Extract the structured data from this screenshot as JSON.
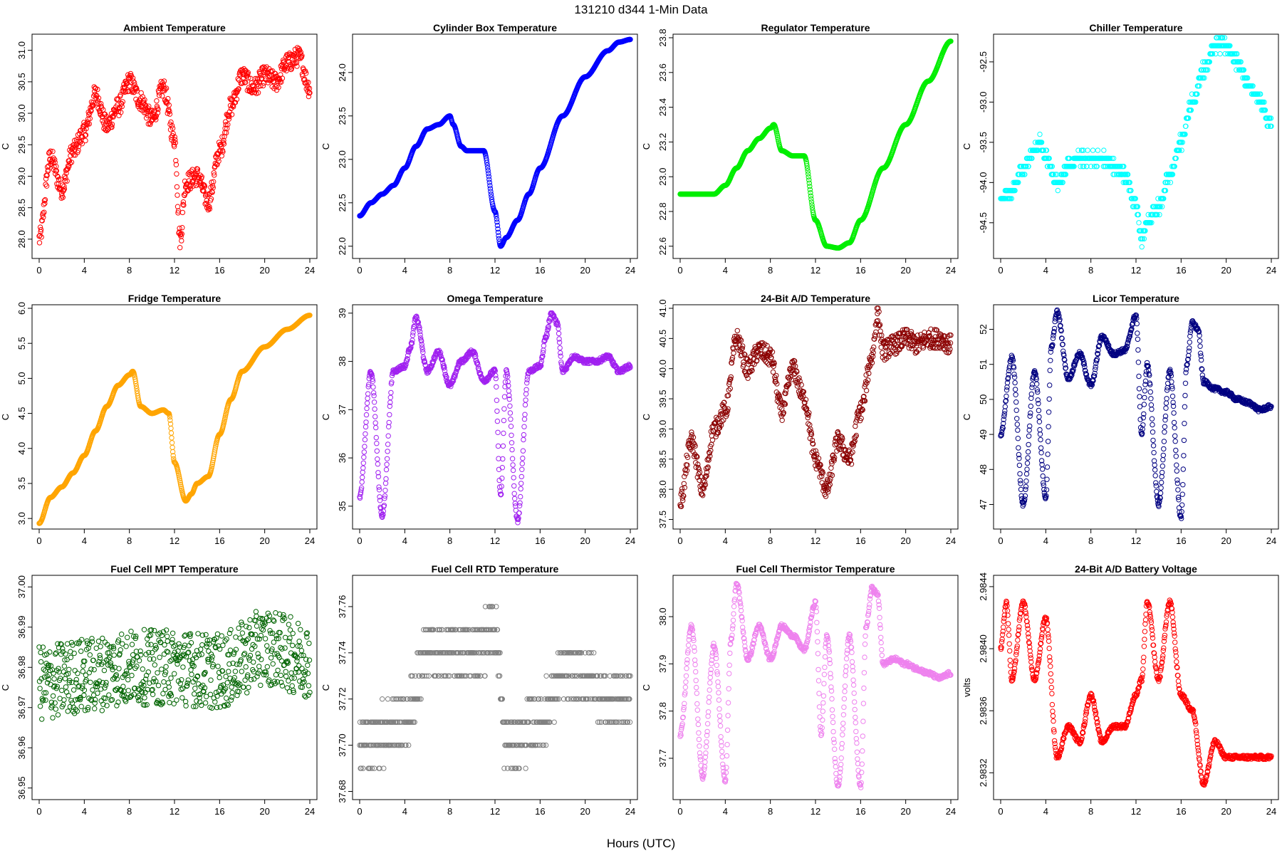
{
  "page": {
    "title": "131210    d344    1-Min Data",
    "x_label": "Hours (UTC)"
  },
  "chart_data": [
    {
      "type": "scatter",
      "title": "Ambient Temperature",
      "ylabel": "C",
      "xlabel": "",
      "xlim": [
        0,
        24
      ],
      "ylim": [
        27.75,
        31.2
      ],
      "xticks": [
        0,
        4,
        8,
        12,
        16,
        20,
        24
      ],
      "yticks": [
        "28.0",
        "28.5",
        "29.0",
        "29.5",
        "30.0",
        "30.5",
        "31.0"
      ],
      "color": "#ff0000",
      "style": "noisy",
      "series": [
        {
          "name": "Ambient Temperature",
          "x": [
            0,
            1,
            2,
            3,
            4,
            5,
            6,
            7,
            8,
            9,
            10,
            11,
            12,
            12.5,
            13,
            14,
            15,
            16,
            17,
            18,
            19,
            20,
            21,
            22,
            23,
            24
          ],
          "y": [
            28.0,
            29.3,
            28.8,
            29.4,
            29.7,
            30.3,
            29.8,
            30.1,
            30.5,
            30.2,
            29.9,
            30.4,
            29.6,
            28.0,
            28.9,
            29.0,
            28.6,
            29.4,
            30.1,
            30.6,
            30.4,
            30.6,
            30.5,
            30.8,
            30.9,
            30.4
          ]
        }
      ]
    },
    {
      "type": "scatter",
      "title": "Cylinder Box Temperature",
      "ylabel": "C",
      "xlabel": "",
      "xlim": [
        0,
        24
      ],
      "ylim": [
        21.9,
        24.4
      ],
      "xticks": [
        0,
        4,
        8,
        12,
        16,
        20,
        24
      ],
      "yticks": [
        "22.0",
        "22.5",
        "23.0",
        "23.5",
        "24.0"
      ],
      "color": "#0000ff",
      "style": "smooth",
      "series": [
        {
          "name": "Cylinder Box Temperature",
          "x": [
            0,
            1,
            2,
            3,
            4,
            5,
            6,
            7,
            8,
            8.3,
            9,
            9.5,
            10,
            11,
            12,
            12.5,
            13,
            14,
            15,
            16,
            18,
            20,
            22,
            23,
            24
          ],
          "y": [
            22.35,
            22.5,
            22.6,
            22.7,
            22.9,
            23.15,
            23.35,
            23.4,
            23.5,
            23.4,
            23.15,
            23.1,
            23.1,
            23.1,
            22.4,
            22.0,
            22.1,
            22.3,
            22.6,
            22.9,
            23.5,
            23.95,
            24.25,
            24.35,
            24.38
          ]
        }
      ]
    },
    {
      "type": "scatter",
      "title": "Regulator Temperature",
      "ylabel": "C",
      "xlabel": "",
      "xlim": [
        0,
        24
      ],
      "ylim": [
        22.55,
        23.8
      ],
      "xticks": [
        0,
        4,
        8,
        12,
        16,
        20,
        24
      ],
      "yticks": [
        "22.6",
        "22.8",
        "23.0",
        "23.2",
        "23.4",
        "23.6",
        "23.8"
      ],
      "color": "#00ee00",
      "style": "smooth",
      "series": [
        {
          "name": "Regulator Temperature",
          "x": [
            0,
            1,
            2,
            3,
            4,
            5,
            6,
            7,
            8,
            8.3,
            9,
            10,
            11,
            12,
            13,
            14,
            15,
            16,
            18,
            20,
            22,
            24
          ],
          "y": [
            22.9,
            22.9,
            22.9,
            22.9,
            22.95,
            23.05,
            23.15,
            23.22,
            23.28,
            23.3,
            23.15,
            23.12,
            23.12,
            22.75,
            22.6,
            22.59,
            22.62,
            22.75,
            23.05,
            23.3,
            23.55,
            23.78
          ]
        }
      ]
    },
    {
      "type": "scatter",
      "title": "Chiller Temperature",
      "ylabel": "C",
      "xlabel": "",
      "xlim": [
        0,
        24
      ],
      "ylim": [
        -94.9,
        -92.2
      ],
      "xticks": [
        0,
        4,
        8,
        12,
        16,
        20,
        24
      ],
      "yticks": [
        "-94.5",
        "-94.0",
        "-93.5",
        "-93.0",
        "-92.5"
      ],
      "color": "#00ffff",
      "style": "step",
      "series": [
        {
          "name": "Chiller Temperature",
          "x": [
            0,
            1,
            2,
            3,
            3.5,
            4,
            5,
            6,
            7,
            8,
            9,
            10,
            11,
            12,
            12.5,
            13,
            14,
            15,
            16,
            17,
            18,
            19,
            20,
            21,
            22,
            23,
            24
          ],
          "y": [
            -94.2,
            -94.1,
            -93.8,
            -93.6,
            -93.5,
            -93.7,
            -94.0,
            -93.8,
            -93.7,
            -93.7,
            -93.7,
            -93.8,
            -93.9,
            -94.3,
            -94.7,
            -94.5,
            -94.3,
            -93.9,
            -93.5,
            -93.0,
            -92.6,
            -92.3,
            -92.3,
            -92.5,
            -92.8,
            -93.0,
            -93.3
          ]
        }
      ]
    },
    {
      "type": "scatter",
      "title": "Fridge Temperature",
      "ylabel": "C",
      "xlabel": "",
      "xlim": [
        0,
        24
      ],
      "ylim": [
        2.9,
        6.0
      ],
      "xticks": [
        0,
        4,
        8,
        12,
        16,
        20,
        24
      ],
      "yticks": [
        "3.0",
        "3.5",
        "4.0",
        "4.5",
        "5.0",
        "5.5",
        "6.0"
      ],
      "color": "#ffa500",
      "style": "smooth",
      "series": [
        {
          "name": "Fridge Temperature",
          "x": [
            0,
            1,
            2,
            3,
            4,
            5,
            6,
            7,
            8,
            8.3,
            9,
            10,
            11,
            11.5,
            12,
            13,
            13.5,
            14,
            15,
            16,
            17,
            18,
            20,
            22,
            24
          ],
          "y": [
            2.93,
            3.3,
            3.45,
            3.65,
            3.9,
            4.25,
            4.6,
            4.9,
            5.05,
            5.1,
            4.6,
            4.5,
            4.55,
            4.5,
            3.8,
            3.25,
            3.35,
            3.5,
            3.6,
            4.2,
            4.7,
            5.1,
            5.45,
            5.7,
            5.9
          ]
        }
      ]
    },
    {
      "type": "scatter",
      "title": "Omega Temperature",
      "ylabel": "C",
      "xlabel": "",
      "xlim": [
        0,
        24
      ],
      "ylim": [
        34.6,
        39.1
      ],
      "xticks": [
        0,
        4,
        8,
        12,
        16,
        20,
        24
      ],
      "yticks": [
        "35",
        "36",
        "37",
        "38",
        "39"
      ],
      "color": "#a020f0",
      "style": "oscillating",
      "series": [
        {
          "name": "Omega Temperature",
          "x": [
            0,
            1,
            2,
            3,
            4,
            4.5,
            5,
            6,
            7,
            8,
            9,
            10,
            11,
            12,
            12.5,
            13,
            14,
            15,
            16,
            16.5,
            17,
            17.5,
            18,
            19,
            20,
            21,
            22,
            23,
            24
          ],
          "y": [
            35.2,
            37.8,
            34.8,
            37.8,
            37.9,
            38.3,
            38.9,
            37.8,
            38.2,
            37.5,
            38.0,
            38.2,
            37.6,
            37.8,
            35.2,
            37.8,
            34.7,
            37.8,
            37.9,
            38.5,
            39.0,
            38.8,
            37.8,
            38.1,
            38.0,
            38.0,
            38.1,
            37.8,
            37.9
          ]
        }
      ]
    },
    {
      "type": "scatter",
      "title": "24-Bit A/D Temperature",
      "ylabel": "C",
      "xlabel": "",
      "xlim": [
        0,
        24
      ],
      "ylim": [
        37.4,
        41.0
      ],
      "xticks": [
        0,
        4,
        8,
        12,
        16,
        20,
        24
      ],
      "yticks": [
        "37.5",
        "38.0",
        "38.5",
        "39.0",
        "39.5",
        "40.0",
        "40.5",
        "41.0"
      ],
      "color": "#8b0000",
      "style": "noisy",
      "series": [
        {
          "name": "24-Bit A/D Temperature",
          "x": [
            0,
            1,
            2,
            3,
            4,
            5,
            6,
            7,
            8,
            9,
            10,
            11,
            12,
            13,
            14,
            15,
            16,
            17,
            17.5,
            18,
            19,
            20,
            21,
            22,
            23,
            24
          ],
          "y": [
            37.8,
            38.8,
            38.0,
            39.0,
            39.3,
            40.5,
            40.0,
            40.3,
            40.2,
            39.3,
            40.0,
            39.5,
            38.5,
            38.0,
            38.8,
            38.5,
            39.3,
            40.2,
            40.9,
            40.3,
            40.4,
            40.5,
            40.4,
            40.5,
            40.5,
            40.4
          ]
        }
      ]
    },
    {
      "type": "scatter",
      "title": "Licor Temperature",
      "ylabel": "C",
      "xlabel": "",
      "xlim": [
        0,
        24
      ],
      "ylim": [
        46.4,
        52.6
      ],
      "xticks": [
        0,
        4,
        8,
        12,
        16,
        20,
        24
      ],
      "yticks": [
        "47",
        "48",
        "49",
        "50",
        "51",
        "52"
      ],
      "color": "#000080",
      "style": "oscillating",
      "series": [
        {
          "name": "Licor Temperature",
          "x": [
            0,
            1,
            2,
            3,
            4,
            4.5,
            5,
            6,
            7,
            8,
            9,
            10,
            11,
            12,
            12.5,
            13,
            14,
            15,
            16,
            16.5,
            17,
            17.5,
            18,
            19,
            20,
            21,
            22,
            23,
            24
          ],
          "y": [
            49.0,
            51.2,
            47.0,
            50.8,
            47.2,
            51.5,
            52.5,
            50.6,
            51.3,
            50.4,
            51.8,
            51.3,
            51.4,
            52.4,
            49.0,
            51.0,
            47.0,
            50.8,
            46.6,
            51.0,
            52.2,
            52.0,
            50.5,
            50.3,
            50.2,
            50.0,
            49.9,
            49.7,
            49.8
          ]
        }
      ]
    },
    {
      "type": "scatter",
      "title": "Fuel Cell MPT Temperature",
      "ylabel": "C",
      "xlabel": "",
      "xlim": [
        0,
        24
      ],
      "ylim": [
        36.948,
        37.002
      ],
      "xticks": [
        0,
        4,
        8,
        12,
        16,
        20,
        24
      ],
      "yticks": [
        "36.95",
        "36.96",
        "36.97",
        "36.98",
        "36.99",
        "37.00"
      ],
      "color": "#006400",
      "style": "scatter-noise",
      "series": [
        {
          "name": "Fuel Cell MPT Temperature",
          "x": [
            0,
            4,
            8,
            12,
            16,
            20,
            24
          ],
          "y": [
            36.976,
            36.978,
            36.98,
            36.98,
            36.979,
            36.985,
            36.982
          ]
        }
      ]
    },
    {
      "type": "scatter",
      "title": "Fuel Cell RTD Temperature",
      "ylabel": "C",
      "xlabel": "",
      "xlim": [
        0,
        24
      ],
      "ylim": [
        37.678,
        37.772
      ],
      "xticks": [
        0,
        4,
        8,
        12,
        16,
        20,
        24
      ],
      "yticks": [
        "37.68",
        "37.70",
        "37.72",
        "37.74",
        "37.76"
      ],
      "color": "#808080",
      "style": "quantized",
      "series": [
        {
          "name": "Fuel Cell RTD Temperature",
          "x": [
            0,
            4,
            6,
            8,
            10,
            12,
            13,
            16,
            18,
            20,
            22,
            24
          ],
          "y": [
            37.7,
            37.71,
            37.74,
            37.74,
            37.74,
            37.75,
            37.7,
            37.71,
            37.73,
            37.73,
            37.72,
            37.72
          ]
        }
      ]
    },
    {
      "type": "scatter",
      "title": "Fuel Cell Thermistor Temperature",
      "ylabel": "C",
      "xlabel": "",
      "xlim": [
        0,
        24
      ],
      "ylim": [
        37.62,
        38.08
      ],
      "xticks": [
        0,
        4,
        8,
        12,
        16,
        20,
        24
      ],
      "yticks": [
        "37.7",
        "37.8",
        "37.9",
        "38.0"
      ],
      "color": "#ee82ee",
      "style": "oscillating",
      "series": [
        {
          "name": "Fuel Cell Thermistor Temperature",
          "x": [
            0,
            1,
            2,
            3,
            4,
            4.5,
            5,
            6,
            7,
            8,
            9,
            10,
            11,
            12,
            12.5,
            13,
            14,
            15,
            16,
            16.5,
            17,
            17.5,
            18,
            19,
            20,
            21,
            22,
            23,
            24
          ],
          "y": [
            37.75,
            37.98,
            37.66,
            37.94,
            37.65,
            37.95,
            38.07,
            37.91,
            37.98,
            37.91,
            37.98,
            37.96,
            37.93,
            38.03,
            37.75,
            37.96,
            37.64,
            37.96,
            37.64,
            37.98,
            38.06,
            38.05,
            37.9,
            37.91,
            37.9,
            37.89,
            37.88,
            37.87,
            37.88
          ]
        }
      ]
    },
    {
      "type": "scatter",
      "title": "24-Bit A/D Battery Voltage",
      "ylabel": "volts",
      "xlabel": "",
      "xlim": [
        0,
        24
      ],
      "ylim": [
        2.98305,
        2.98445
      ],
      "xticks": [
        0,
        4,
        8,
        12,
        16,
        20,
        24
      ],
      "yticks": [
        "2.9832",
        "2.9836",
        "2.9840",
        "2.9844"
      ],
      "color": "#ff0000",
      "style": "oscillating",
      "series": [
        {
          "name": "24-Bit A/D Battery Voltage",
          "x": [
            0,
            0.5,
            1,
            2,
            3,
            4,
            5,
            6,
            7,
            8,
            9,
            10,
            11,
            12,
            12.5,
            13,
            14,
            15,
            16,
            17,
            18,
            19,
            20,
            21,
            22,
            23,
            24
          ],
          "y": [
            2.984,
            2.9843,
            2.9838,
            2.9843,
            2.9838,
            2.9842,
            2.9833,
            2.9835,
            2.9834,
            2.9837,
            2.9834,
            2.9835,
            2.9835,
            2.9837,
            2.9838,
            2.9843,
            2.9838,
            2.9843,
            2.9837,
            2.9836,
            2.98313,
            2.9834,
            2.9833,
            2.9833,
            2.9833,
            2.9833,
            2.9833
          ]
        }
      ]
    }
  ]
}
